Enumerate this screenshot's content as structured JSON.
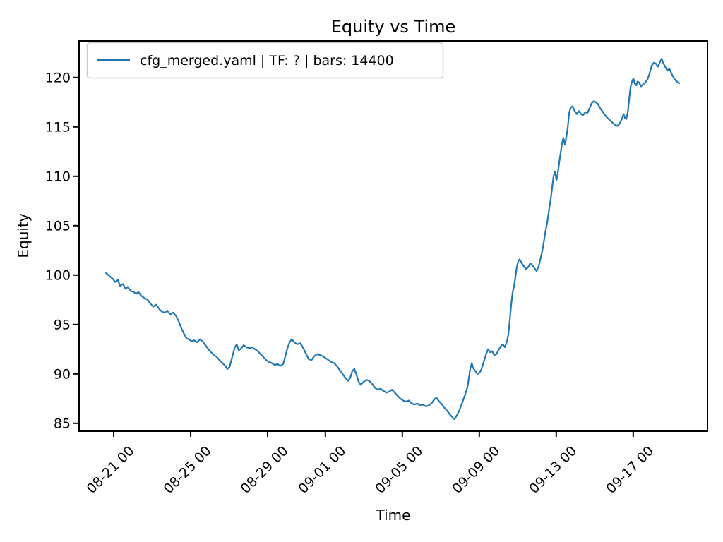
{
  "figure": {
    "background": "#ffffff",
    "kind": "matplotlib-style line plot"
  },
  "chart_data": {
    "type": "line",
    "title": "Equity vs Time",
    "xlabel": "Time",
    "ylabel": "Equity",
    "grid": false,
    "line_color": "#1f77b4",
    "legend": {
      "position": "upper left",
      "entries": [
        {
          "label": "cfg_merged.yaml | TF: ? | bars: 14400",
          "color": "#1f77b4"
        }
      ]
    },
    "x_axis": {
      "unit": "days since 08-21 00:00",
      "range": [
        -1.8,
        30.86
      ],
      "tick_rotation_deg": 45,
      "ticks": [
        {
          "pos": 0,
          "label": "08-21 00"
        },
        {
          "pos": 4,
          "label": "08-25 00"
        },
        {
          "pos": 8,
          "label": "08-29 00"
        },
        {
          "pos": 11,
          "label": "09-01 00"
        },
        {
          "pos": 15,
          "label": "09-05 00"
        },
        {
          "pos": 19,
          "label": "09-09 00"
        },
        {
          "pos": 23,
          "label": "09-13 00"
        },
        {
          "pos": 27,
          "label": "09-17 00"
        }
      ]
    },
    "y_axis": {
      "range": [
        84.2,
        123.7
      ],
      "ticks": [
        85,
        90,
        95,
        100,
        105,
        110,
        115,
        120
      ]
    },
    "series": [
      {
        "name": "cfg_merged.yaml | TF: ? | bars: 14400",
        "color": "#1f77b4",
        "points": [
          [
            -0.4,
            100.2
          ],
          [
            -0.22,
            99.9
          ],
          [
            -0.04,
            99.6
          ],
          [
            0.07,
            99.3
          ],
          [
            0.22,
            99.5
          ],
          [
            0.33,
            98.9
          ],
          [
            0.48,
            99.1
          ],
          [
            0.62,
            98.6
          ],
          [
            0.73,
            98.8
          ],
          [
            0.88,
            98.4
          ],
          [
            1.03,
            98.3
          ],
          [
            1.17,
            98.1
          ],
          [
            1.28,
            98.3
          ],
          [
            1.43,
            97.9
          ],
          [
            1.58,
            97.7
          ],
          [
            1.76,
            97.5
          ],
          [
            1.91,
            97.1
          ],
          [
            2.06,
            96.8
          ],
          [
            2.2,
            97.0
          ],
          [
            2.35,
            96.6
          ],
          [
            2.5,
            96.3
          ],
          [
            2.64,
            96.2
          ],
          [
            2.79,
            96.4
          ],
          [
            2.94,
            96.0
          ],
          [
            3.08,
            96.2
          ],
          [
            3.23,
            95.9
          ],
          [
            3.38,
            95.3
          ],
          [
            3.52,
            94.6
          ],
          [
            3.67,
            94.0
          ],
          [
            3.78,
            93.6
          ],
          [
            3.93,
            93.5
          ],
          [
            4.04,
            93.3
          ],
          [
            4.18,
            93.4
          ],
          [
            4.33,
            93.2
          ],
          [
            4.48,
            93.5
          ],
          [
            4.62,
            93.3
          ],
          [
            4.77,
            92.9
          ],
          [
            4.92,
            92.5
          ],
          [
            5.06,
            92.2
          ],
          [
            5.21,
            91.9
          ],
          [
            5.36,
            91.7
          ],
          [
            5.5,
            91.4
          ],
          [
            5.65,
            91.1
          ],
          [
            5.8,
            90.8
          ],
          [
            5.91,
            90.5
          ],
          [
            6.02,
            90.7
          ],
          [
            6.13,
            91.5
          ],
          [
            6.28,
            92.6
          ],
          [
            6.39,
            93.0
          ],
          [
            6.5,
            92.4
          ],
          [
            6.64,
            92.6
          ],
          [
            6.75,
            92.9
          ],
          [
            6.9,
            92.7
          ],
          [
            7.05,
            92.6
          ],
          [
            7.19,
            92.7
          ],
          [
            7.34,
            92.5
          ],
          [
            7.49,
            92.3
          ],
          [
            7.63,
            92.0
          ],
          [
            7.78,
            91.7
          ],
          [
            7.93,
            91.4
          ],
          [
            8.07,
            91.2
          ],
          [
            8.22,
            91.1
          ],
          [
            8.37,
            90.9
          ],
          [
            8.51,
            91.0
          ],
          [
            8.66,
            90.8
          ],
          [
            8.81,
            91.0
          ],
          [
            8.92,
            91.8
          ],
          [
            9.03,
            92.6
          ],
          [
            9.14,
            93.2
          ],
          [
            9.25,
            93.5
          ],
          [
            9.39,
            93.2
          ],
          [
            9.54,
            93.0
          ],
          [
            9.69,
            93.1
          ],
          [
            9.83,
            92.7
          ],
          [
            9.98,
            92.1
          ],
          [
            10.13,
            91.5
          ],
          [
            10.28,
            91.4
          ],
          [
            10.42,
            91.8
          ],
          [
            10.57,
            92.0
          ],
          [
            10.72,
            91.9
          ],
          [
            10.86,
            91.8
          ],
          [
            11.01,
            91.6
          ],
          [
            11.16,
            91.4
          ],
          [
            11.3,
            91.2
          ],
          [
            11.45,
            91.1
          ],
          [
            11.6,
            90.8
          ],
          [
            11.74,
            90.4
          ],
          [
            11.89,
            90.0
          ],
          [
            12.04,
            89.6
          ],
          [
            12.18,
            89.3
          ],
          [
            12.29,
            89.6
          ],
          [
            12.4,
            90.3
          ],
          [
            12.51,
            90.5
          ],
          [
            12.62,
            89.9
          ],
          [
            12.73,
            89.2
          ],
          [
            12.84,
            88.9
          ],
          [
            12.99,
            89.2
          ],
          [
            13.14,
            89.4
          ],
          [
            13.28,
            89.3
          ],
          [
            13.43,
            89.0
          ],
          [
            13.58,
            88.6
          ],
          [
            13.72,
            88.4
          ],
          [
            13.87,
            88.5
          ],
          [
            14.02,
            88.3
          ],
          [
            14.17,
            88.1
          ],
          [
            14.31,
            88.2
          ],
          [
            14.46,
            88.4
          ],
          [
            14.61,
            88.1
          ],
          [
            14.75,
            87.8
          ],
          [
            14.9,
            87.5
          ],
          [
            15.05,
            87.3
          ],
          [
            15.19,
            87.2
          ],
          [
            15.34,
            87.3
          ],
          [
            15.49,
            87.0
          ],
          [
            15.63,
            86.9
          ],
          [
            15.78,
            87.0
          ],
          [
            15.93,
            86.8
          ],
          [
            16.07,
            86.9
          ],
          [
            16.22,
            86.7
          ],
          [
            16.37,
            86.8
          ],
          [
            16.51,
            87.0
          ],
          [
            16.66,
            87.4
          ],
          [
            16.77,
            87.6
          ],
          [
            16.88,
            87.3
          ],
          [
            17.03,
            87.0
          ],
          [
            17.17,
            86.6
          ],
          [
            17.32,
            86.3
          ],
          [
            17.47,
            85.9
          ],
          [
            17.61,
            85.6
          ],
          [
            17.72,
            85.4
          ],
          [
            17.83,
            85.8
          ],
          [
            17.94,
            86.2
          ],
          [
            18.06,
            86.8
          ],
          [
            18.17,
            87.4
          ],
          [
            18.28,
            88.0
          ],
          [
            18.39,
            88.7
          ],
          [
            18.46,
            89.6
          ],
          [
            18.53,
            90.5
          ],
          [
            18.61,
            91.1
          ],
          [
            18.68,
            90.6
          ],
          [
            18.79,
            90.3
          ],
          [
            18.9,
            90.0
          ],
          [
            19.01,
            90.1
          ],
          [
            19.12,
            90.5
          ],
          [
            19.23,
            91.2
          ],
          [
            19.34,
            91.9
          ],
          [
            19.45,
            92.5
          ],
          [
            19.56,
            92.2
          ],
          [
            19.67,
            92.3
          ],
          [
            19.78,
            91.9
          ],
          [
            19.89,
            92.0
          ],
          [
            20.0,
            92.4
          ],
          [
            20.11,
            92.8
          ],
          [
            20.22,
            93.0
          ],
          [
            20.33,
            92.7
          ],
          [
            20.44,
            93.3
          ],
          [
            20.51,
            94.0
          ],
          [
            20.59,
            95.5
          ],
          [
            20.66,
            97.0
          ],
          [
            20.73,
            98.2
          ],
          [
            20.81,
            98.9
          ],
          [
            20.88,
            99.8
          ],
          [
            20.95,
            100.8
          ],
          [
            21.03,
            101.4
          ],
          [
            21.1,
            101.6
          ],
          [
            21.21,
            101.2
          ],
          [
            21.32,
            100.9
          ],
          [
            21.43,
            100.6
          ],
          [
            21.54,
            100.8
          ],
          [
            21.65,
            101.2
          ],
          [
            21.76,
            101.0
          ],
          [
            21.87,
            100.7
          ],
          [
            21.98,
            100.4
          ],
          [
            22.09,
            100.9
          ],
          [
            22.2,
            101.8
          ],
          [
            22.28,
            102.5
          ],
          [
            22.35,
            103.3
          ],
          [
            22.42,
            104.2
          ],
          [
            22.5,
            105.0
          ],
          [
            22.57,
            105.8
          ],
          [
            22.64,
            106.8
          ],
          [
            22.72,
            107.8
          ],
          [
            22.79,
            108.9
          ],
          [
            22.86,
            110.0
          ],
          [
            22.94,
            110.5
          ],
          [
            23.01,
            109.6
          ],
          [
            23.08,
            110.3
          ],
          [
            23.16,
            111.5
          ],
          [
            23.23,
            112.4
          ],
          [
            23.3,
            113.3
          ],
          [
            23.37,
            113.9
          ],
          [
            23.45,
            113.2
          ],
          [
            23.52,
            113.9
          ],
          [
            23.6,
            115.0
          ],
          [
            23.67,
            116.4
          ],
          [
            23.74,
            116.9
          ],
          [
            23.85,
            117.1
          ],
          [
            23.96,
            116.6
          ],
          [
            24.07,
            116.3
          ],
          [
            24.18,
            116.6
          ],
          [
            24.29,
            116.3
          ],
          [
            24.4,
            116.2
          ],
          [
            24.51,
            116.5
          ],
          [
            24.62,
            116.4
          ],
          [
            24.73,
            116.9
          ],
          [
            24.84,
            117.4
          ],
          [
            24.95,
            117.6
          ],
          [
            25.06,
            117.5
          ],
          [
            25.17,
            117.3
          ],
          [
            25.28,
            116.9
          ],
          [
            25.39,
            116.6
          ],
          [
            25.5,
            116.3
          ],
          [
            25.61,
            116.0
          ],
          [
            25.72,
            115.8
          ],
          [
            25.83,
            115.6
          ],
          [
            25.94,
            115.4
          ],
          [
            26.06,
            115.2
          ],
          [
            26.17,
            115.1
          ],
          [
            26.28,
            115.3
          ],
          [
            26.39,
            115.7
          ],
          [
            26.5,
            116.3
          ],
          [
            26.57,
            115.9
          ],
          [
            26.64,
            115.8
          ],
          [
            26.72,
            116.5
          ],
          [
            26.79,
            117.8
          ],
          [
            26.86,
            119.0
          ],
          [
            26.94,
            119.6
          ],
          [
            27.01,
            119.9
          ],
          [
            27.08,
            119.4
          ],
          [
            27.16,
            119.2
          ],
          [
            27.23,
            119.6
          ],
          [
            27.3,
            119.5
          ],
          [
            27.41,
            119.1
          ],
          [
            27.52,
            119.3
          ],
          [
            27.63,
            119.5
          ],
          [
            27.74,
            119.8
          ],
          [
            27.85,
            120.4
          ],
          [
            27.96,
            121.2
          ],
          [
            28.07,
            121.5
          ],
          [
            28.18,
            121.4
          ],
          [
            28.29,
            121.1
          ],
          [
            28.4,
            121.6
          ],
          [
            28.48,
            121.9
          ],
          [
            28.55,
            121.5
          ],
          [
            28.66,
            121.1
          ],
          [
            28.77,
            120.7
          ],
          [
            28.88,
            120.9
          ],
          [
            28.99,
            120.4
          ],
          [
            29.1,
            120.0
          ],
          [
            29.21,
            119.7
          ],
          [
            29.32,
            119.5
          ],
          [
            29.39,
            119.4
          ]
        ]
      }
    ]
  }
}
